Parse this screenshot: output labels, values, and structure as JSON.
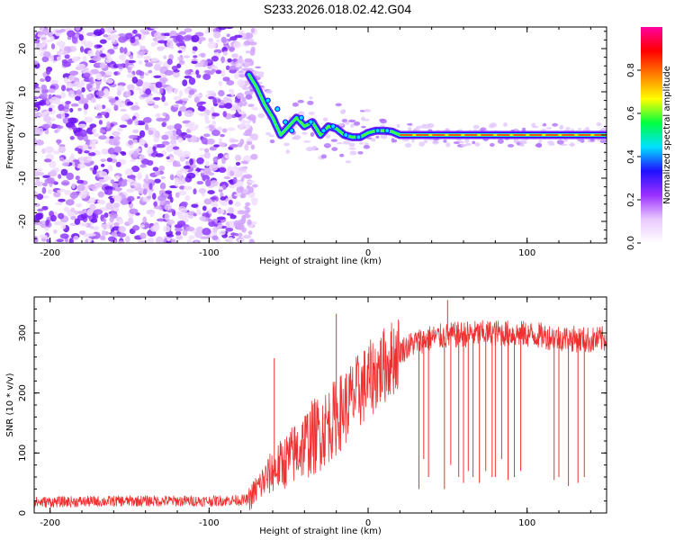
{
  "title": "S233.2026.018.02.42.G04",
  "chart_data": [
    {
      "type": "heatmap",
      "name": "spectrogram",
      "xlabel": "Height of straight line (km)",
      "ylabel": "Frequency (Hz)",
      "xlim": [
        -210,
        150
      ],
      "ylim": [
        -25,
        25
      ],
      "xticks": [
        -200,
        -100,
        0,
        100
      ],
      "yticks": [
        -20,
        -10,
        0,
        10,
        20
      ],
      "colorbar": {
        "label": "Normalized spectral amplitude",
        "range": [
          0,
          1
        ],
        "ticks": [
          0.0,
          0.2,
          0.4,
          0.6,
          0.8
        ],
        "tick_labels": [
          "0.0",
          "0.2",
          "0.4",
          "0.6",
          "0.8"
        ],
        "colors": [
          "#ffffff",
          "#e9c8ff",
          "#9b30ff",
          "#2010ff",
          "#00e0ff",
          "#00ff40",
          "#ffff00",
          "#ff8000",
          "#ff0000",
          "#ff00a0"
        ]
      },
      "noise_region_x": [
        -210,
        -75
      ],
      "carrier_track": [
        {
          "x": -75,
          "f": 14
        },
        {
          "x": -70,
          "f": 11
        },
        {
          "x": -65,
          "f": 7
        },
        {
          "x": -60,
          "f": 4
        },
        {
          "x": -55,
          "f": 0
        },
        {
          "x": -50,
          "f": 2
        },
        {
          "x": -45,
          "f": 4
        },
        {
          "x": -40,
          "f": 2
        },
        {
          "x": -35,
          "f": 3
        },
        {
          "x": -30,
          "f": 0
        },
        {
          "x": -25,
          "f": 2
        },
        {
          "x": -20,
          "f": 1.5
        },
        {
          "x": -15,
          "f": 0
        },
        {
          "x": -10,
          "f": -0.5
        },
        {
          "x": -5,
          "f": -0.5
        },
        {
          "x": 0,
          "f": 0.5
        },
        {
          "x": 5,
          "f": 1
        },
        {
          "x": 10,
          "f": 1
        },
        {
          "x": 15,
          "f": 0.8
        },
        {
          "x": 20,
          "f": 0
        },
        {
          "x": 150,
          "f": 0
        }
      ]
    },
    {
      "type": "line",
      "name": "snr",
      "xlabel": "Height of straight line (km)",
      "ylabel": "SNR (10 * v/v)",
      "xlim": [
        -210,
        150
      ],
      "ylim": [
        0,
        360
      ],
      "xticks": [
        -200,
        -100,
        0,
        100
      ],
      "yticks": [
        0,
        100,
        200,
        300
      ],
      "color": "#f03030",
      "trend": [
        {
          "x": -210,
          "y": 18
        },
        {
          "x": -150,
          "y": 20
        },
        {
          "x": -100,
          "y": 20
        },
        {
          "x": -75,
          "y": 22
        },
        {
          "x": -70,
          "y": 40
        },
        {
          "x": -60,
          "y": 70
        },
        {
          "x": -50,
          "y": 90
        },
        {
          "x": -40,
          "y": 115
        },
        {
          "x": -30,
          "y": 135
        },
        {
          "x": -20,
          "y": 160
        },
        {
          "x": -10,
          "y": 190
        },
        {
          "x": 0,
          "y": 220
        },
        {
          "x": 10,
          "y": 245
        },
        {
          "x": 20,
          "y": 270
        },
        {
          "x": 30,
          "y": 285
        },
        {
          "x": 40,
          "y": 292
        },
        {
          "x": 60,
          "y": 298
        },
        {
          "x": 80,
          "y": 300
        },
        {
          "x": 100,
          "y": 298
        },
        {
          "x": 120,
          "y": 292
        },
        {
          "x": 140,
          "y": 288
        },
        {
          "x": 150,
          "y": 290
        }
      ],
      "spikes_up": [
        {
          "x": -59,
          "y": 258
        },
        {
          "x": -20,
          "y": 332
        },
        {
          "x": 50,
          "y": 355
        }
      ],
      "dropouts": [
        {
          "x": 32,
          "y": 40
        },
        {
          "x": 35,
          "y": 90
        },
        {
          "x": 38,
          "y": 60
        },
        {
          "x": 48,
          "y": 40
        },
        {
          "x": 52,
          "y": 80
        },
        {
          "x": 57,
          "y": 60
        },
        {
          "x": 60,
          "y": 50
        },
        {
          "x": 63,
          "y": 70
        },
        {
          "x": 66,
          "y": 60
        },
        {
          "x": 70,
          "y": 50
        },
        {
          "x": 74,
          "y": 70
        },
        {
          "x": 78,
          "y": 60
        },
        {
          "x": 80,
          "y": 60
        },
        {
          "x": 84,
          "y": 90
        },
        {
          "x": 88,
          "y": 55
        },
        {
          "x": 92,
          "y": 60
        },
        {
          "x": 96,
          "y": 70
        },
        {
          "x": 117,
          "y": 55
        },
        {
          "x": 120,
          "y": 60
        },
        {
          "x": 126,
          "y": 45
        },
        {
          "x": 132,
          "y": 50
        },
        {
          "x": 136,
          "y": 60
        }
      ]
    }
  ]
}
